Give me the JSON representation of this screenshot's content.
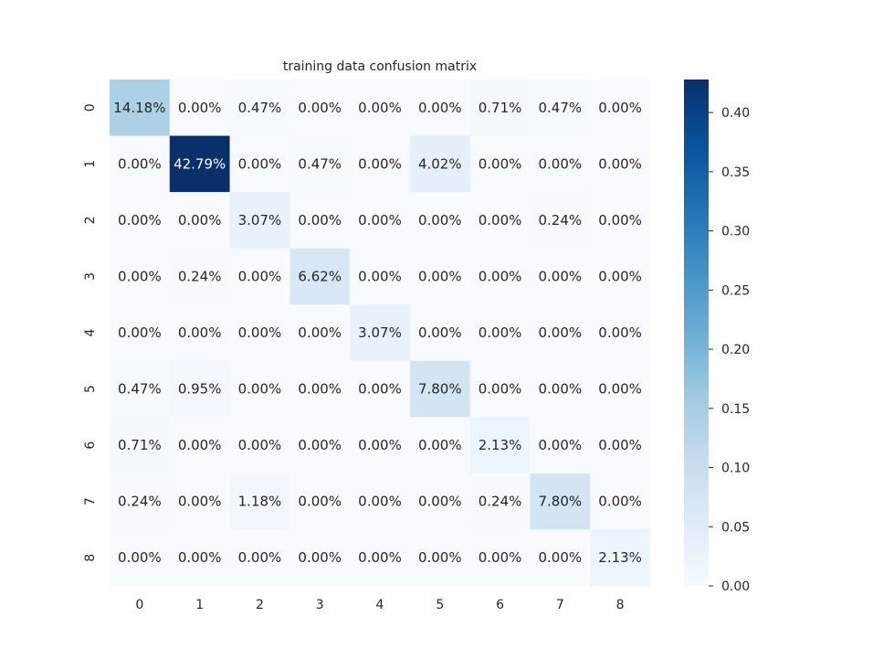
{
  "chart_data": {
    "type": "heatmap",
    "title": "training data confusion matrix",
    "xlabel": "",
    "ylabel": "",
    "x_tick_labels": [
      "0",
      "1",
      "2",
      "3",
      "4",
      "5",
      "6",
      "7",
      "8"
    ],
    "y_tick_labels": [
      "0",
      "1",
      "2",
      "3",
      "4",
      "5",
      "6",
      "7",
      "8"
    ],
    "values": [
      [
        0.1418,
        0.0,
        0.0047,
        0.0,
        0.0,
        0.0,
        0.0071,
        0.0047,
        0.0
      ],
      [
        0.0,
        0.4279,
        0.0,
        0.0047,
        0.0,
        0.0402,
        0.0,
        0.0,
        0.0
      ],
      [
        0.0,
        0.0,
        0.0307,
        0.0,
        0.0,
        0.0,
        0.0,
        0.0024,
        0.0
      ],
      [
        0.0,
        0.0024,
        0.0,
        0.0662,
        0.0,
        0.0,
        0.0,
        0.0,
        0.0
      ],
      [
        0.0,
        0.0,
        0.0,
        0.0,
        0.0307,
        0.0,
        0.0,
        0.0,
        0.0
      ],
      [
        0.0047,
        0.0095,
        0.0,
        0.0,
        0.0,
        0.078,
        0.0,
        0.0,
        0.0
      ],
      [
        0.0071,
        0.0,
        0.0,
        0.0,
        0.0,
        0.0,
        0.0213,
        0.0,
        0.0
      ],
      [
        0.0024,
        0.0,
        0.0118,
        0.0,
        0.0,
        0.0,
        0.0024,
        0.078,
        0.0
      ],
      [
        0.0,
        0.0,
        0.0,
        0.0,
        0.0,
        0.0,
        0.0,
        0.0,
        0.0213
      ]
    ],
    "cell_labels": [
      [
        "14.18%",
        "0.00%",
        "0.47%",
        "0.00%",
        "0.00%",
        "0.00%",
        "0.71%",
        "0.47%",
        "0.00%"
      ],
      [
        "0.00%",
        "42.79%",
        "0.00%",
        "0.47%",
        "0.00%",
        "4.02%",
        "0.00%",
        "0.00%",
        "0.00%"
      ],
      [
        "0.00%",
        "0.00%",
        "3.07%",
        "0.00%",
        "0.00%",
        "0.00%",
        "0.00%",
        "0.24%",
        "0.00%"
      ],
      [
        "0.00%",
        "0.24%",
        "0.00%",
        "6.62%",
        "0.00%",
        "0.00%",
        "0.00%",
        "0.00%",
        "0.00%"
      ],
      [
        "0.00%",
        "0.00%",
        "0.00%",
        "0.00%",
        "3.07%",
        "0.00%",
        "0.00%",
        "0.00%",
        "0.00%"
      ],
      [
        "0.47%",
        "0.95%",
        "0.00%",
        "0.00%",
        "0.00%",
        "7.80%",
        "0.00%",
        "0.00%",
        "0.00%"
      ],
      [
        "0.71%",
        "0.00%",
        "0.00%",
        "0.00%",
        "0.00%",
        "0.00%",
        "2.13%",
        "0.00%",
        "0.00%"
      ],
      [
        "0.24%",
        "0.00%",
        "1.18%",
        "0.00%",
        "0.00%",
        "0.00%",
        "0.24%",
        "7.80%",
        "0.00%"
      ],
      [
        "0.00%",
        "0.00%",
        "0.00%",
        "0.00%",
        "0.00%",
        "0.00%",
        "0.00%",
        "0.00%",
        "2.13%"
      ]
    ],
    "colormap": "Blues",
    "color_range": [
      0.0,
      0.4279
    ],
    "colorbar_ticks": [
      0.0,
      0.05,
      0.1,
      0.15,
      0.2,
      0.25,
      0.3,
      0.35,
      0.4
    ],
    "colorbar_tick_labels": [
      "0.00",
      "0.05",
      "0.10",
      "0.15",
      "0.20",
      "0.25",
      "0.30",
      "0.35",
      "0.40"
    ],
    "grid": false
  },
  "colors": {
    "low": "#f7fbff",
    "high": "#08306b",
    "text_dark": "#262626",
    "text_light": "#ffffff"
  }
}
